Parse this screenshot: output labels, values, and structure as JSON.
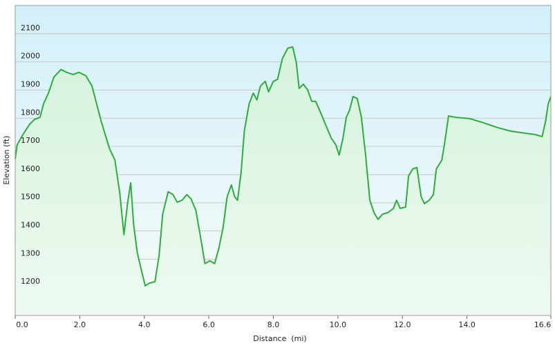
{
  "chart_data": {
    "type": "area",
    "x_label": "Distance  (mi)",
    "y_label": "Elevation (ft)",
    "color": "#2eaa3f",
    "grid": true,
    "xlim": [
      0,
      16.6
    ],
    "ylim": [
      1100,
      2200
    ],
    "xticks": [
      {
        "value": 0,
        "label": "0.0"
      },
      {
        "value": 2,
        "label": "2.0"
      },
      {
        "value": 4,
        "label": "4.0"
      },
      {
        "value": 6,
        "label": "6.0"
      },
      {
        "value": 8,
        "label": "8.0"
      },
      {
        "value": 10,
        "label": "10.0"
      },
      {
        "value": 12,
        "label": "12.0"
      },
      {
        "value": 14,
        "label": "14.0"
      },
      16.6
    ],
    "yticks": [
      1200,
      1300,
      1400,
      1500,
      1600,
      1700,
      1800,
      1900,
      2000,
      2100
    ],
    "x": [
      0,
      0.06,
      0.24,
      0.45,
      0.6,
      0.77,
      0.88,
      1.03,
      1.2,
      1.42,
      1.59,
      1.8,
      1.97,
      2.19,
      2.38,
      2.66,
      2.92,
      3.09,
      3.24,
      3.37,
      3.48,
      3.58,
      3.67,
      3.78,
      3.88,
      4.03,
      4.16,
      4.33,
      4.46,
      4.57,
      4.74,
      4.89,
      5.02,
      5.17,
      5.32,
      5.45,
      5.6,
      5.75,
      5.88,
      6.03,
      6.18,
      6.31,
      6.44,
      6.57,
      6.7,
      6.8,
      6.89,
      7.0,
      7.1,
      7.25,
      7.38,
      7.49,
      7.6,
      7.75,
      7.85,
      8.0,
      8.13,
      8.28,
      8.45,
      8.6,
      8.71,
      8.8,
      8.93,
      9.06,
      9.19,
      9.31,
      9.46,
      9.61,
      9.79,
      9.94,
      10.04,
      10.15,
      10.26,
      10.36,
      10.47,
      10.6,
      10.73,
      10.86,
      10.99,
      11.12,
      11.24,
      11.39,
      11.55,
      11.72,
      11.82,
      11.93,
      12.1,
      12.19,
      12.32,
      12.45,
      12.58,
      12.68,
      12.83,
      12.96,
      13.05,
      13.22,
      13.3,
      13.43,
      13.65,
      14.08,
      14.51,
      14.94,
      15.36,
      15.79,
      16.12,
      16.33,
      16.44,
      16.52,
      16.6
    ],
    "values": [
      1656,
      1705,
      1742,
      1779,
      1796,
      1803,
      1852,
      1889,
      1946,
      1973,
      1963,
      1955,
      1963,
      1951,
      1914,
      1791,
      1693,
      1651,
      1534,
      1387,
      1497,
      1571,
      1424,
      1325,
      1276,
      1205,
      1215,
      1220,
      1313,
      1460,
      1539,
      1529,
      1502,
      1509,
      1529,
      1514,
      1473,
      1375,
      1284,
      1294,
      1284,
      1338,
      1411,
      1522,
      1563,
      1522,
      1509,
      1607,
      1754,
      1852,
      1889,
      1865,
      1914,
      1931,
      1894,
      1931,
      1938,
      2012,
      2049,
      2053,
      1999,
      1906,
      1921,
      1901,
      1860,
      1860,
      1821,
      1779,
      1730,
      1705,
      1669,
      1725,
      1803,
      1828,
      1877,
      1870,
      1803,
      1669,
      1509,
      1465,
      1441,
      1460,
      1465,
      1480,
      1509,
      1480,
      1485,
      1595,
      1620,
      1625,
      1522,
      1497,
      1509,
      1529,
      1620,
      1651,
      1705,
      1808,
      1803,
      1799,
      1784,
      1767,
      1754,
      1747,
      1742,
      1735,
      1791,
      1852,
      1877
    ]
  }
}
